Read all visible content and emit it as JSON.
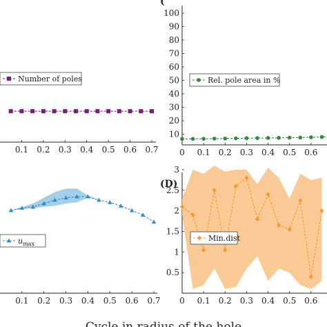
{
  "figure": {
    "panel_letters": [
      "(",
      "(D)"
    ],
    "bottom_caption": "Cycle in radius of the hole"
  },
  "colors": {
    "purple": "#7b1e7a",
    "green": "#2e8b3e",
    "blue": "#2f8fc8",
    "blue_band": "#8fc3e4",
    "orange": "#f29a2e",
    "orange_band": "#f8c48a",
    "axis": "#222222"
  },
  "chart_data": [
    {
      "panel": "top-left",
      "type": "line",
      "series": [
        {
          "name": "Number of poles",
          "marker": "square",
          "color": "#7b1e7a",
          "x": [
            0.05,
            0.1,
            0.15,
            0.2,
            0.25,
            0.3,
            0.35,
            0.4,
            0.45,
            0.5,
            0.55,
            0.6,
            0.65,
            0.7
          ],
          "y": [
            16,
            16,
            16,
            16,
            16,
            16,
            16,
            16,
            16,
            16,
            16,
            16,
            16,
            16
          ]
        }
      ],
      "x_ticks": [
        "0.1",
        "0.2",
        "0.3",
        "0.4",
        "0.5",
        "0.6",
        "0.7"
      ],
      "x_tick_values": [
        0.1,
        0.2,
        0.3,
        0.4,
        0.5,
        0.6,
        0.7
      ],
      "legend": "middle-left"
    },
    {
      "panel": "top-right",
      "type": "line",
      "series": [
        {
          "name": "Rel. pole area in %",
          "marker": "circle",
          "color": "#2e8b3e",
          "x": [
            0,
            0.05,
            0.1,
            0.15,
            0.2,
            0.25,
            0.3,
            0.35,
            0.4,
            0.45,
            0.5,
            0.55,
            0.6,
            0.65,
            0.7
          ],
          "y": [
            6.5,
            6.5,
            6.6,
            6.7,
            6.8,
            6.9,
            7.0,
            7.1,
            7.2,
            7.3,
            7.4,
            7.5,
            7.7,
            7.9,
            8.2
          ]
        }
      ],
      "y_ticks": [
        "10",
        "20",
        "30",
        "40",
        "50",
        "60",
        "70",
        "80",
        "90",
        "100"
      ],
      "y_tick_values": [
        10,
        20,
        30,
        40,
        50,
        60,
        70,
        80,
        90,
        100
      ],
      "x_ticks": [
        "0",
        "0.1",
        "0.2",
        "0.3",
        "0.4",
        "0.5",
        "0.6"
      ],
      "x_tick_values": [
        0,
        0.1,
        0.2,
        0.3,
        0.4,
        0.5,
        0.6
      ],
      "ylim": [
        0,
        105
      ],
      "legend": "middle-center"
    },
    {
      "panel": "bottom-left",
      "type": "line",
      "series": [
        {
          "name": "u_max",
          "label_main": "u",
          "label_sub": "max",
          "marker": "triangle",
          "color": "#2f8fc8",
          "x": [
            0.05,
            0.1,
            0.15,
            0.2,
            0.25,
            0.3,
            0.35,
            0.4,
            0.45,
            0.5,
            0.55,
            0.6,
            0.65,
            0.7
          ],
          "y": [
            0,
            0.1,
            0.15,
            0.3,
            0.45,
            0.55,
            0.6,
            0.6,
            0.45,
            0.35,
            0.2,
            0,
            -0.2,
            -0.5
          ],
          "band_low": [
            0,
            0.05,
            0.1,
            0.15,
            0.2,
            0.3,
            0.35,
            0.55,
            0.45,
            0.35,
            0.2,
            0,
            -0.2,
            -0.5
          ],
          "band_high": [
            0,
            0.15,
            0.3,
            0.55,
            0.8,
            0.95,
            0.95,
            0.65,
            0.45,
            0.35,
            0.2,
            0,
            -0.2,
            -0.5
          ]
        }
      ],
      "x_ticks": [
        "0.1",
        "0.2",
        "0.3",
        "0.4",
        "0.5",
        "0.6",
        "0.7"
      ],
      "x_tick_values": [
        0.1,
        0.2,
        0.3,
        0.4,
        0.5,
        0.6,
        0.7
      ],
      "legend": "middle-left"
    },
    {
      "panel": "bottom-right",
      "type": "line",
      "series": [
        {
          "name": "Min.dist",
          "marker": "diamond",
          "color": "#f29a2e",
          "x": [
            0,
            0.05,
            0.1,
            0.15,
            0.2,
            0.25,
            0.3,
            0.35,
            0.4,
            0.45,
            0.5,
            0.55,
            0.6,
            0.65
          ],
          "y": [
            2.1,
            1.9,
            1.05,
            2.5,
            1.05,
            2.6,
            2.8,
            1.8,
            2.4,
            1.65,
            1.55,
            2.25,
            0.4,
            2.0
          ],
          "band_low": [
            1.9,
            0.1,
            0.2,
            0.6,
            0.1,
            0.15,
            0.6,
            0.9,
            0.3,
            0.6,
            0.5,
            0.2,
            0.1,
            0.3
          ],
          "band_high": [
            2.3,
            3.0,
            2.9,
            3.1,
            2.95,
            3.0,
            3.0,
            2.65,
            3.05,
            2.8,
            2.3,
            2.9,
            2.75,
            2.8
          ]
        }
      ],
      "y_ticks": [
        "0.5",
        "1",
        "1.5",
        "2",
        "2.5",
        "3"
      ],
      "y_tick_values": [
        0.5,
        1,
        1.5,
        2,
        2.5,
        3
      ],
      "x_ticks": [
        "0",
        "0.1",
        "0.2",
        "0.3",
        "0.4",
        "0.5",
        "0.6"
      ],
      "x_tick_values": [
        0,
        0.1,
        0.2,
        0.3,
        0.4,
        0.5,
        0.6
      ],
      "ylim": [
        0,
        3.2
      ],
      "legend": "middle-left"
    }
  ]
}
